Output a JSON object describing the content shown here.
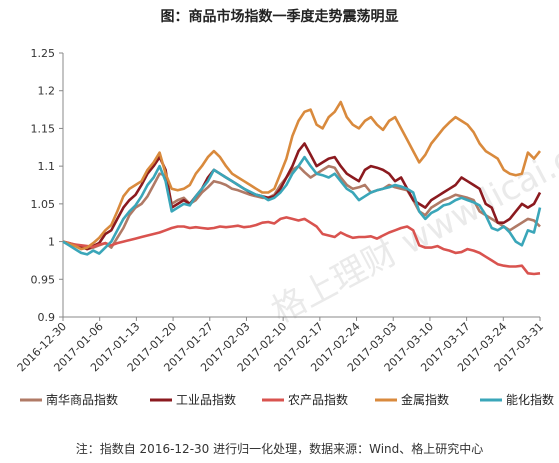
{
  "title": "图：商品市场指数一季度走势震荡明显",
  "note": "注：指数自 2016-12-30 进行归一化处理，数据来源：Wind、格上研究中心",
  "watermark": "格上理财 www.licai.com",
  "chart_data": {
    "type": "line",
    "title": "图：商品市场指数一季度走势震荡明显",
    "ylim": [
      0.9,
      1.25
    ],
    "yticks": [
      "0.9",
      "0.95",
      "1",
      "1.05",
      "1.1",
      "1.15",
      "1.2",
      "1.25"
    ],
    "xticks": [
      "2016-12-30",
      "2017-01-06",
      "2017-01-13",
      "2017-01-20",
      "2017-01-27",
      "2017-02-03",
      "2017-02-10",
      "2017-02-17",
      "2017-02-24",
      "2017-03-03",
      "2017-03-10",
      "2017-03-17",
      "2017-03-24",
      "2017-03-31"
    ],
    "legend_position": "bottom",
    "grid": false,
    "series": [
      {
        "name": "南华商品指数",
        "color": "#b07a66",
        "values": [
          1.0,
          0.998,
          0.996,
          0.994,
          0.99,
          0.992,
          0.995,
          0.998,
          0.992,
          1.005,
          1.018,
          1.035,
          1.045,
          1.05,
          1.06,
          1.075,
          1.09,
          1.088,
          1.05,
          1.055,
          1.058,
          1.05,
          1.055,
          1.065,
          1.072,
          1.08,
          1.078,
          1.075,
          1.07,
          1.068,
          1.065,
          1.062,
          1.06,
          1.058,
          1.058,
          1.062,
          1.075,
          1.085,
          1.095,
          1.1,
          1.092,
          1.085,
          1.09,
          1.095,
          1.1,
          1.098,
          1.085,
          1.075,
          1.07,
          1.072,
          1.075,
          1.065,
          1.068,
          1.07,
          1.075,
          1.072,
          1.07,
          1.068,
          1.055,
          1.04,
          1.035,
          1.045,
          1.05,
          1.055,
          1.058,
          1.062,
          1.06,
          1.058,
          1.055,
          1.04,
          1.035,
          1.03,
          1.025,
          1.02,
          1.015,
          1.02,
          1.025,
          1.03,
          1.028,
          1.02
        ]
      },
      {
        "name": "工业品指数",
        "color": "#8b1a1f",
        "values": [
          1.0,
          0.998,
          0.995,
          0.993,
          0.99,
          0.994,
          0.998,
          1.01,
          1.015,
          1.03,
          1.045,
          1.055,
          1.062,
          1.075,
          1.09,
          1.1,
          1.112,
          1.095,
          1.045,
          1.05,
          1.055,
          1.05,
          1.06,
          1.07,
          1.085,
          1.095,
          1.09,
          1.085,
          1.08,
          1.075,
          1.07,
          1.065,
          1.062,
          1.06,
          1.058,
          1.06,
          1.07,
          1.085,
          1.1,
          1.12,
          1.13,
          1.115,
          1.1,
          1.105,
          1.11,
          1.112,
          1.1,
          1.09,
          1.085,
          1.08,
          1.095,
          1.1,
          1.098,
          1.095,
          1.09,
          1.08,
          1.085,
          1.07,
          1.055,
          1.05,
          1.045,
          1.055,
          1.06,
          1.065,
          1.07,
          1.075,
          1.085,
          1.08,
          1.075,
          1.07,
          1.05,
          1.045,
          1.025,
          1.025,
          1.03,
          1.04,
          1.05,
          1.045,
          1.05,
          1.065
        ]
      },
      {
        "name": "农产品指数",
        "color": "#d9534f",
        "values": [
          1.0,
          0.998,
          0.996,
          0.995,
          0.994,
          0.993,
          0.996,
          0.998,
          0.995,
          0.998,
          1.0,
          1.002,
          1.004,
          1.006,
          1.008,
          1.01,
          1.012,
          1.015,
          1.018,
          1.02,
          1.02,
          1.018,
          1.019,
          1.018,
          1.017,
          1.018,
          1.02,
          1.019,
          1.02,
          1.021,
          1.019,
          1.02,
          1.022,
          1.025,
          1.026,
          1.024,
          1.03,
          1.032,
          1.03,
          1.028,
          1.03,
          1.025,
          1.02,
          1.01,
          1.008,
          1.006,
          1.012,
          1.008,
          1.005,
          1.006,
          1.006,
          1.007,
          1.004,
          1.008,
          1.012,
          1.015,
          1.018,
          1.02,
          1.015,
          0.995,
          0.992,
          0.992,
          0.994,
          0.99,
          0.988,
          0.985,
          0.986,
          0.99,
          0.988,
          0.985,
          0.98,
          0.975,
          0.97,
          0.968,
          0.967,
          0.967,
          0.968,
          0.958,
          0.957,
          0.958
        ]
      },
      {
        "name": "金属指数",
        "color": "#d98a3d",
        "values": [
          1.0,
          0.997,
          0.994,
          0.99,
          0.992,
          0.998,
          1.005,
          1.015,
          1.022,
          1.04,
          1.06,
          1.07,
          1.075,
          1.08,
          1.095,
          1.105,
          1.118,
          1.09,
          1.07,
          1.068,
          1.07,
          1.075,
          1.09,
          1.1,
          1.112,
          1.12,
          1.112,
          1.1,
          1.09,
          1.085,
          1.08,
          1.075,
          1.07,
          1.065,
          1.065,
          1.07,
          1.09,
          1.11,
          1.14,
          1.16,
          1.172,
          1.175,
          1.155,
          1.15,
          1.165,
          1.172,
          1.185,
          1.165,
          1.155,
          1.15,
          1.16,
          1.165,
          1.155,
          1.148,
          1.16,
          1.165,
          1.15,
          1.135,
          1.12,
          1.105,
          1.115,
          1.13,
          1.14,
          1.15,
          1.158,
          1.165,
          1.16,
          1.155,
          1.145,
          1.13,
          1.12,
          1.115,
          1.11,
          1.095,
          1.09,
          1.088,
          1.09,
          1.118,
          1.11,
          1.12
        ]
      },
      {
        "name": "能化指数",
        "color": "#3aa6b9",
        "values": [
          1.0,
          0.995,
          0.99,
          0.985,
          0.983,
          0.988,
          0.984,
          0.992,
          1.0,
          1.015,
          1.03,
          1.04,
          1.048,
          1.06,
          1.075,
          1.085,
          1.1,
          1.08,
          1.04,
          1.045,
          1.05,
          1.048,
          1.06,
          1.07,
          1.08,
          1.095,
          1.09,
          1.085,
          1.08,
          1.075,
          1.07,
          1.066,
          1.062,
          1.06,
          1.055,
          1.058,
          1.065,
          1.075,
          1.09,
          1.1,
          1.112,
          1.1,
          1.09,
          1.088,
          1.085,
          1.09,
          1.08,
          1.07,
          1.065,
          1.055,
          1.06,
          1.065,
          1.068,
          1.07,
          1.072,
          1.075,
          1.073,
          1.07,
          1.065,
          1.04,
          1.03,
          1.038,
          1.042,
          1.048,
          1.05,
          1.055,
          1.058,
          1.055,
          1.052,
          1.048,
          1.035,
          1.018,
          1.015,
          1.02,
          1.012,
          1.0,
          0.995,
          1.015,
          1.012,
          1.045
        ]
      }
    ]
  }
}
